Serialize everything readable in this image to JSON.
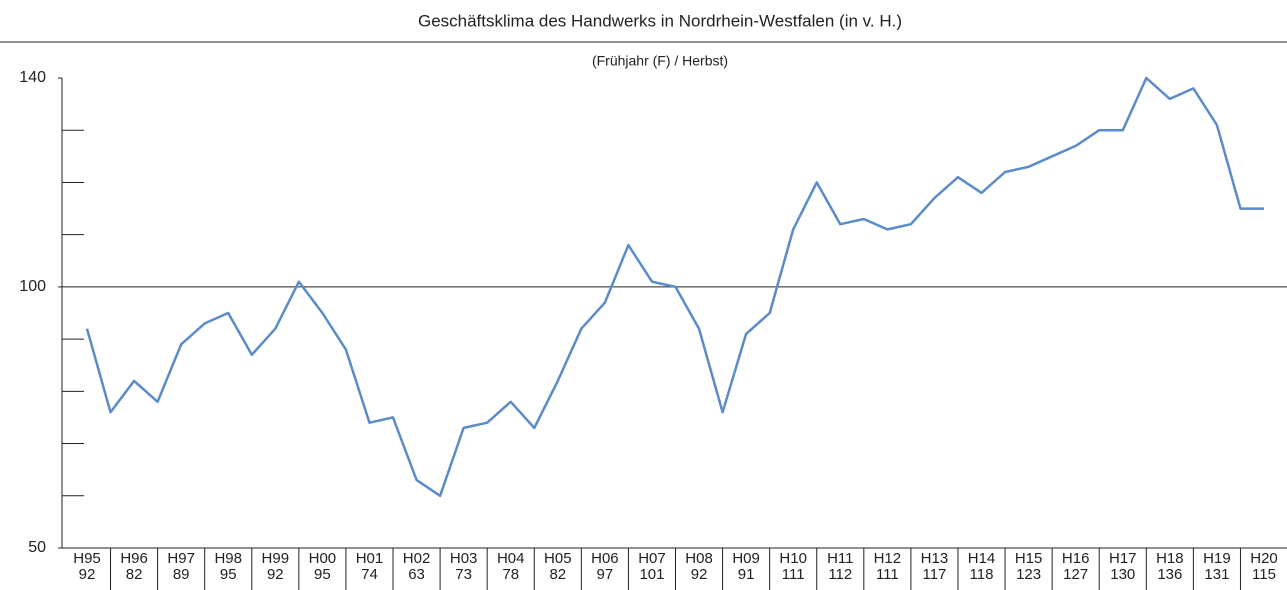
{
  "chart_data": {
    "type": "line",
    "title": "Geschäftsklima des Handwerks in Nordrhein-Westfalen (in v. H.)",
    "subtitle": "(Frühjahr (F) / Herbst)",
    "categories": [
      "H95",
      null,
      "H96",
      null,
      "H97",
      null,
      "H98",
      null,
      "H99",
      null,
      "H00",
      null,
      "H01",
      null,
      "H02",
      null,
      "H03",
      null,
      "H04",
      null,
      "H05",
      null,
      "H06",
      null,
      "H07",
      null,
      "H08",
      null,
      "H09",
      null,
      "H10",
      null,
      "H11",
      null,
      "H12",
      null,
      "H13",
      null,
      "H14",
      null,
      "H15",
      null,
      "H16",
      null,
      "H17",
      null,
      "H18",
      null,
      "H19",
      null,
      "H20"
    ],
    "values": [
      92,
      76,
      82,
      78,
      89,
      93,
      95,
      87,
      92,
      101,
      95,
      88,
      74,
      75,
      63,
      60,
      73,
      74,
      78,
      73,
      82,
      92,
      97,
      108,
      101,
      100,
      92,
      76,
      91,
      95,
      111,
      120,
      112,
      113,
      111,
      112,
      117,
      121,
      118,
      122,
      123,
      125,
      127,
      130,
      130,
      140,
      136,
      138,
      131,
      115,
      115
    ],
    "color": "#5b8bc9",
    "ylim": [
      50,
      140
    ],
    "yticks": [
      50,
      100,
      140
    ],
    "minor_yticks": [
      60,
      70,
      80,
      90,
      110,
      120,
      130
    ],
    "reference_line": 100
  }
}
